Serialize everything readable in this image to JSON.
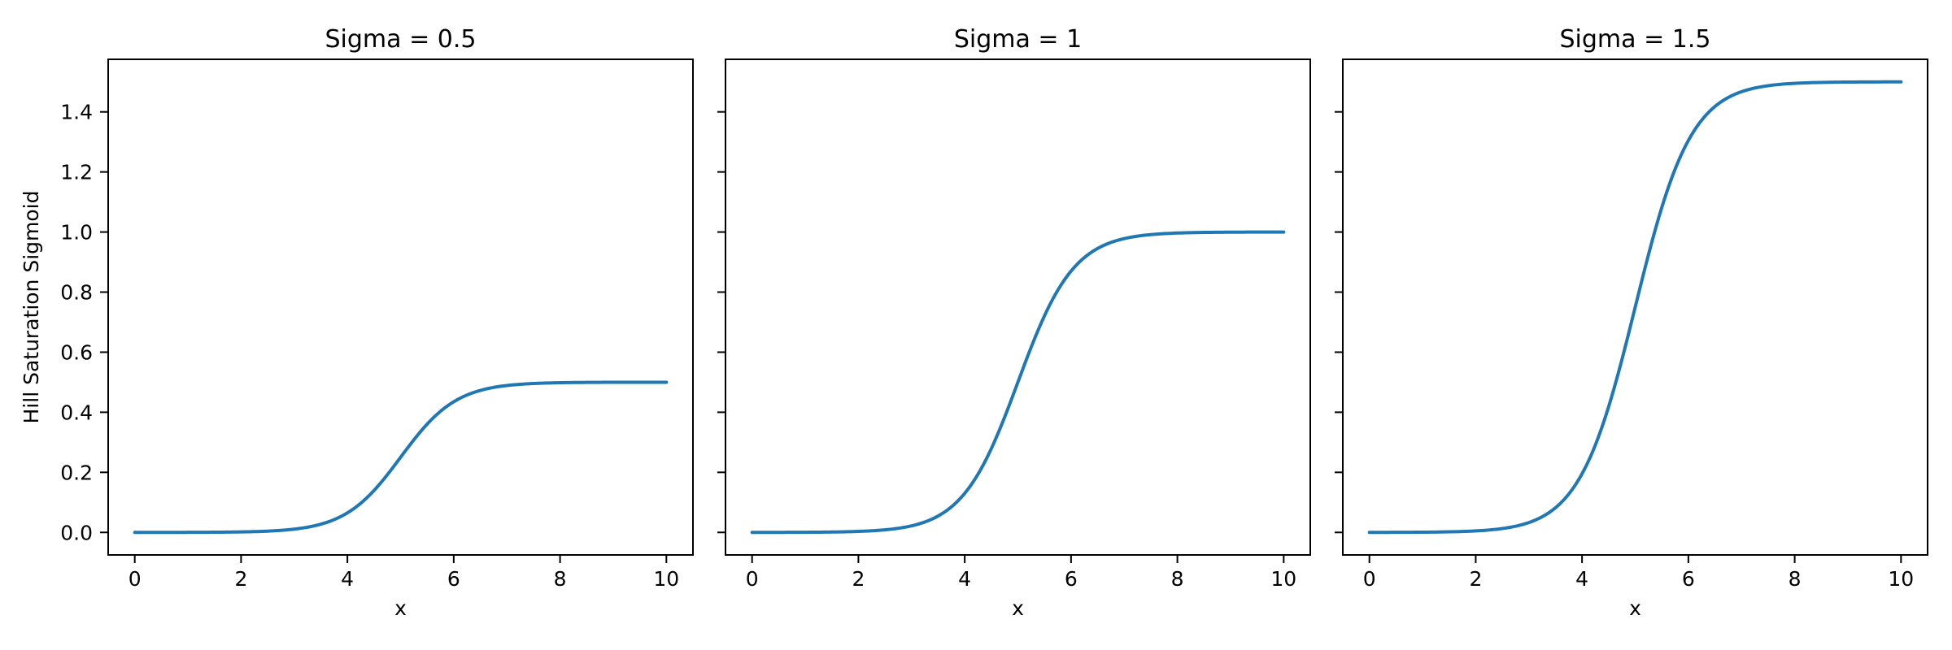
{
  "chart_data": {
    "type": "line",
    "layout": "1x3-subplots",
    "xlabel": "x",
    "ylabel": "Hill Saturation Sigmoid",
    "xlim": [
      -0.5,
      10.5
    ],
    "ylim": [
      -0.075,
      1.575
    ],
    "xticks": [
      "0",
      "2",
      "4",
      "6",
      "8",
      "10"
    ],
    "yticks": [
      "0.0",
      "0.2",
      "0.4",
      "0.6",
      "0.8",
      "1.0",
      "1.2",
      "1.4"
    ],
    "grid": false,
    "legend": "none",
    "line_color": "#1f77b4",
    "background": "#ffffff",
    "model": {
      "type": "logistic",
      "formula": "y = sigma / (1 + exp(-k * (x - x0)))",
      "k": 1.9,
      "x0": 5
    },
    "x": [
      0,
      1,
      2,
      3,
      4,
      5,
      6,
      7,
      8,
      9,
      10
    ],
    "subplots": [
      {
        "title": "Sigma = 0.5",
        "sigma": 0.5,
        "values": [
          0.0,
          0.0002,
          0.0017,
          0.011,
          0.065,
          0.25,
          0.4349,
          0.489,
          0.4983,
          0.4998,
          0.5
        ]
      },
      {
        "title": "Sigma = 1",
        "sigma": 1,
        "values": [
          0.0001,
          0.0005,
          0.0033,
          0.0219,
          0.1301,
          0.5,
          0.8699,
          0.9781,
          0.9967,
          0.9995,
          0.9999
        ]
      },
      {
        "title": "Sigma = 1.5",
        "sigma": 1.5,
        "values": [
          0.0001,
          0.0007,
          0.005,
          0.0329,
          0.1951,
          0.75,
          1.3048,
          1.4671,
          1.495,
          1.4993,
          1.4999
        ]
      }
    ]
  }
}
